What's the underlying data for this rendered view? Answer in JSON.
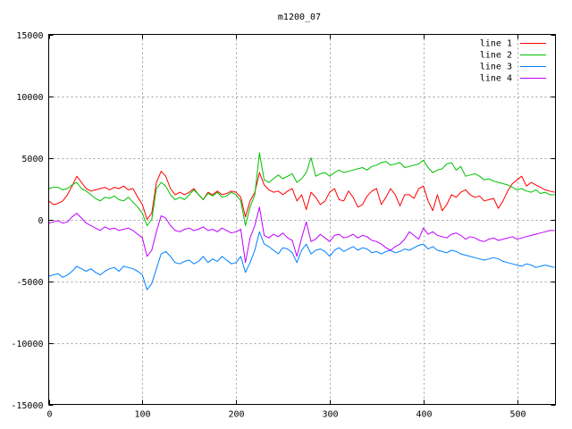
{
  "chart_data": {
    "type": "line",
    "title": "m1200_07",
    "xlabel": "",
    "ylabel": "",
    "xlim": [
      0,
      541
    ],
    "ylim": [
      -15000,
      15000
    ],
    "xticks": [
      0,
      100,
      200,
      300,
      400,
      500
    ],
    "yticks": [
      -15000,
      -10000,
      -5000,
      0,
      5000,
      10000,
      15000
    ],
    "grid": true,
    "legend_position": "top-right",
    "series": [
      {
        "name": "line 1",
        "color": "#ff0000",
        "x": [
          0,
          5,
          10,
          15,
          20,
          25,
          30,
          35,
          40,
          45,
          50,
          55,
          60,
          65,
          70,
          75,
          80,
          85,
          90,
          95,
          100,
          105,
          110,
          115,
          120,
          125,
          130,
          135,
          140,
          145,
          150,
          155,
          160,
          165,
          170,
          175,
          180,
          185,
          190,
          195,
          200,
          205,
          210,
          215,
          220,
          225,
          230,
          235,
          240,
          245,
          250,
          255,
          260,
          265,
          270,
          275,
          280,
          285,
          290,
          295,
          300,
          305,
          310,
          315,
          320,
          325,
          330,
          335,
          340,
          345,
          350,
          355,
          360,
          365,
          370,
          375,
          380,
          385,
          390,
          395,
          400,
          405,
          410,
          415,
          420,
          425,
          430,
          435,
          440,
          445,
          450,
          455,
          460,
          465,
          470,
          475,
          480,
          485,
          490,
          495,
          500,
          505,
          510,
          515,
          520,
          525,
          530,
          535,
          540
        ],
        "values": [
          1500,
          1200,
          1300,
          1500,
          2000,
          2700,
          3500,
          3000,
          2500,
          2300,
          2400,
          2500,
          2600,
          2400,
          2600,
          2500,
          2700,
          2400,
          2500,
          1800,
          1200,
          0,
          500,
          3000,
          3900,
          3500,
          2500,
          2000,
          2200,
          2000,
          2200,
          2500,
          2000,
          1600,
          2200,
          2000,
          2300,
          2000,
          2100,
          2300,
          2200,
          1800,
          200,
          1500,
          2200,
          3800,
          2800,
          2400,
          2200,
          2300,
          2000,
          2300,
          2500,
          1500,
          2000,
          800,
          2200,
          1800,
          1200,
          1500,
          2200,
          2500,
          1600,
          1500,
          2300,
          1800,
          1000,
          1200,
          1900,
          2300,
          2500,
          1200,
          1800,
          2500,
          2000,
          1100,
          2000,
          2000,
          1700,
          2500,
          2700,
          1500,
          700,
          2000,
          700,
          1200,
          2000,
          1800,
          2200,
          2400,
          2000,
          1800,
          1900,
          1500,
          1600,
          1700,
          900,
          1500,
          2300,
          2900,
          3200,
          3500,
          2700,
          3000,
          2800,
          2600,
          2400,
          2300,
          2200
        ]
      },
      {
        "name": "line 2",
        "color": "#00c000",
        "x": [
          0,
          5,
          10,
          15,
          20,
          25,
          30,
          35,
          40,
          45,
          50,
          55,
          60,
          65,
          70,
          75,
          80,
          85,
          90,
          95,
          100,
          105,
          110,
          115,
          120,
          125,
          130,
          135,
          140,
          145,
          150,
          155,
          160,
          165,
          170,
          175,
          180,
          185,
          190,
          195,
          200,
          205,
          210,
          215,
          220,
          225,
          230,
          235,
          240,
          245,
          250,
          255,
          260,
          265,
          270,
          275,
          280,
          285,
          290,
          295,
          300,
          305,
          310,
          315,
          320,
          325,
          330,
          335,
          340,
          345,
          350,
          355,
          360,
          365,
          370,
          375,
          380,
          385,
          390,
          395,
          400,
          405,
          410,
          415,
          420,
          425,
          430,
          435,
          440,
          445,
          450,
          455,
          460,
          465,
          470,
          475,
          480,
          485,
          490,
          495,
          500,
          505,
          510,
          515,
          520,
          525,
          530,
          535,
          540
        ],
        "values": [
          2500,
          2600,
          2600,
          2400,
          2500,
          2800,
          3000,
          2500,
          2300,
          2000,
          1700,
          1500,
          1800,
          1700,
          1900,
          1600,
          1500,
          1800,
          1400,
          1000,
          500,
          -500,
          0,
          2500,
          3000,
          2700,
          2000,
          1600,
          1800,
          1600,
          2000,
          2400,
          2000,
          1600,
          2100,
          1900,
          2200,
          1800,
          1900,
          2200,
          2000,
          1500,
          -500,
          1000,
          2000,
          5400,
          3200,
          3000,
          3300,
          3600,
          3300,
          3500,
          3700,
          3000,
          3300,
          3800,
          5000,
          3500,
          3700,
          3800,
          3500,
          3800,
          4000,
          3800,
          3900,
          4000,
          4100,
          4200,
          4000,
          4300,
          4400,
          4600,
          4700,
          4400,
          4500,
          4600,
          4200,
          4300,
          4400,
          4500,
          4800,
          4200,
          3800,
          4000,
          4100,
          4500,
          4600,
          4000,
          4300,
          3500,
          3600,
          3700,
          3500,
          3200,
          3300,
          3100,
          3000,
          2900,
          2800,
          2600,
          2400,
          2500,
          2300,
          2200,
          2400,
          2100,
          2200,
          2000,
          2000
        ]
      },
      {
        "name": "line 3",
        "color": "#0080ff",
        "x": [
          0,
          5,
          10,
          15,
          20,
          25,
          30,
          35,
          40,
          45,
          50,
          55,
          60,
          65,
          70,
          75,
          80,
          85,
          90,
          95,
          100,
          105,
          110,
          115,
          120,
          125,
          130,
          135,
          140,
          145,
          150,
          155,
          160,
          165,
          170,
          175,
          180,
          185,
          190,
          195,
          200,
          205,
          210,
          215,
          220,
          225,
          230,
          235,
          240,
          245,
          250,
          255,
          260,
          265,
          270,
          275,
          280,
          285,
          290,
          295,
          300,
          305,
          310,
          315,
          320,
          325,
          330,
          335,
          340,
          345,
          350,
          355,
          360,
          365,
          370,
          375,
          380,
          385,
          390,
          395,
          400,
          405,
          410,
          415,
          420,
          425,
          430,
          435,
          440,
          445,
          450,
          455,
          460,
          465,
          470,
          475,
          480,
          485,
          490,
          495,
          500,
          505,
          510,
          515,
          520,
          525,
          530,
          535,
          540
        ],
        "values": [
          -4600,
          -4500,
          -4400,
          -4700,
          -4500,
          -4200,
          -3800,
          -4000,
          -4200,
          -4000,
          -4300,
          -4500,
          -4200,
          -4000,
          -3900,
          -4200,
          -3800,
          -3900,
          -4000,
          -4200,
          -4500,
          -5700,
          -5200,
          -4000,
          -2800,
          -2600,
          -3000,
          -3500,
          -3600,
          -3400,
          -3300,
          -3600,
          -3400,
          -3000,
          -3500,
          -3200,
          -3400,
          -3000,
          -3300,
          -3600,
          -3500,
          -3000,
          -4300,
          -3500,
          -2500,
          -1000,
          -2000,
          -2200,
          -2500,
          -2800,
          -2300,
          -2400,
          -2700,
          -3500,
          -2500,
          -2000,
          -2800,
          -2500,
          -2400,
          -2600,
          -3000,
          -2500,
          -2300,
          -2600,
          -2400,
          -2200,
          -2500,
          -2300,
          -2400,
          -2700,
          -2600,
          -2800,
          -2600,
          -2500,
          -2700,
          -2600,
          -2400,
          -2500,
          -2300,
          -2100,
          -2000,
          -2400,
          -2200,
          -2500,
          -2600,
          -2700,
          -2500,
          -2600,
          -2800,
          -2900,
          -3000,
          -3100,
          -3200,
          -3300,
          -3200,
          -3100,
          -3200,
          -3400,
          -3500,
          -3600,
          -3700,
          -3800,
          -3600,
          -3700,
          -3900,
          -3800,
          -3700,
          -3800,
          -3900
        ]
      },
      {
        "name": "line 4",
        "color": "#c000ff",
        "x": [
          0,
          5,
          10,
          15,
          20,
          25,
          30,
          35,
          40,
          45,
          50,
          55,
          60,
          65,
          70,
          75,
          80,
          85,
          90,
          95,
          100,
          105,
          110,
          115,
          120,
          125,
          130,
          135,
          140,
          145,
          150,
          155,
          160,
          165,
          170,
          175,
          180,
          185,
          190,
          195,
          200,
          205,
          210,
          215,
          220,
          225,
          230,
          235,
          240,
          245,
          250,
          255,
          260,
          265,
          270,
          275,
          280,
          285,
          290,
          295,
          300,
          305,
          310,
          315,
          320,
          325,
          330,
          335,
          340,
          345,
          350,
          355,
          360,
          365,
          370,
          375,
          380,
          385,
          390,
          395,
          400,
          405,
          410,
          415,
          420,
          425,
          430,
          435,
          440,
          445,
          450,
          455,
          460,
          465,
          470,
          475,
          480,
          485,
          490,
          495,
          500,
          505,
          510,
          515,
          520,
          525,
          530,
          535,
          540
        ],
        "values": [
          -300,
          -200,
          -100,
          -300,
          -200,
          200,
          500,
          100,
          -300,
          -500,
          -700,
          -900,
          -600,
          -800,
          -700,
          -900,
          -800,
          -700,
          -900,
          -1200,
          -1500,
          -3000,
          -2500,
          -1000,
          300,
          100,
          -500,
          -900,
          -1000,
          -800,
          -700,
          -900,
          -800,
          -600,
          -900,
          -800,
          -1000,
          -700,
          -900,
          -1100,
          -1000,
          -800,
          -3500,
          -1500,
          -500,
          1000,
          -1300,
          -1500,
          -1200,
          -1400,
          -1100,
          -1500,
          -1700,
          -3000,
          -1500,
          -200,
          -1800,
          -1600,
          -1200,
          -1500,
          -1800,
          -1300,
          -1200,
          -1500,
          -1400,
          -1200,
          -1500,
          -1300,
          -1400,
          -1700,
          -1800,
          -2000,
          -2300,
          -2500,
          -2200,
          -2000,
          -1600,
          -1000,
          -1300,
          -1600,
          -700,
          -1200,
          -1000,
          -1300,
          -1400,
          -1500,
          -1200,
          -1100,
          -1300,
          -1600,
          -1400,
          -1500,
          -1700,
          -1800,
          -1600,
          -1500,
          -1700,
          -1600,
          -1500,
          -1400,
          -1600,
          -1500,
          -1400,
          -1300,
          -1200,
          -1100,
          -1000,
          -900,
          -900
        ]
      }
    ]
  }
}
